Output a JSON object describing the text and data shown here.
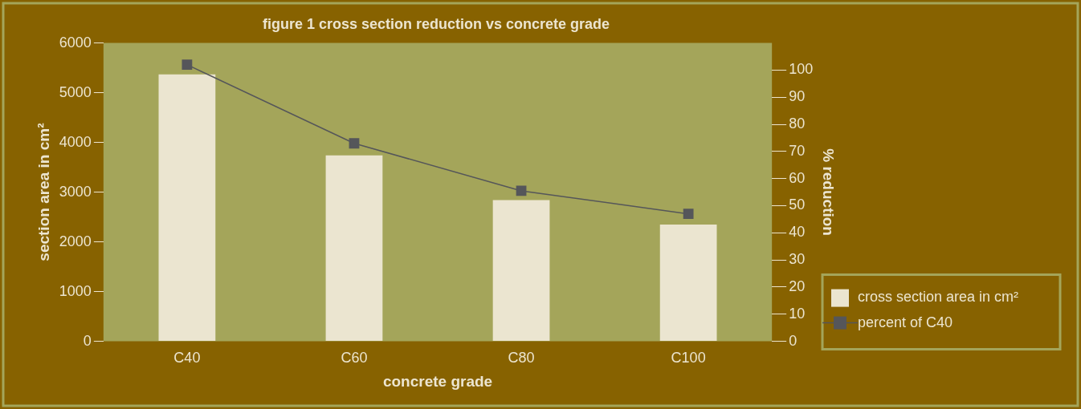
{
  "chart_data": {
    "type": "bar",
    "title": "figure 1 cross section reduction vs concrete grade",
    "xlabel": "concrete grade",
    "ylabel": "section area in cm²",
    "y2label": "% reduction",
    "categories": [
      "C40",
      "C60",
      "C80",
      "C100"
    ],
    "series": [
      {
        "name": "cross section area in cm²",
        "color": "#ebe5d0",
        "values": [
          5370,
          3740,
          2840,
          2350
        ]
      },
      {
        "name": "percent of C40",
        "type": "line",
        "axis": "y2",
        "color": "#55565a",
        "values": [
          102,
          73,
          55.5,
          47
        ]
      }
    ],
    "ylim": [
      0,
      6000
    ],
    "yticks": [
      0,
      1000,
      2000,
      3000,
      4000,
      5000,
      6000
    ],
    "y2lim": [
      0,
      110
    ],
    "y2ticks": [
      0,
      10,
      20,
      30,
      40,
      50,
      60,
      70,
      80,
      90,
      100
    ],
    "legend": "bottom right",
    "marker": "square",
    "line_style": "solid"
  }
}
